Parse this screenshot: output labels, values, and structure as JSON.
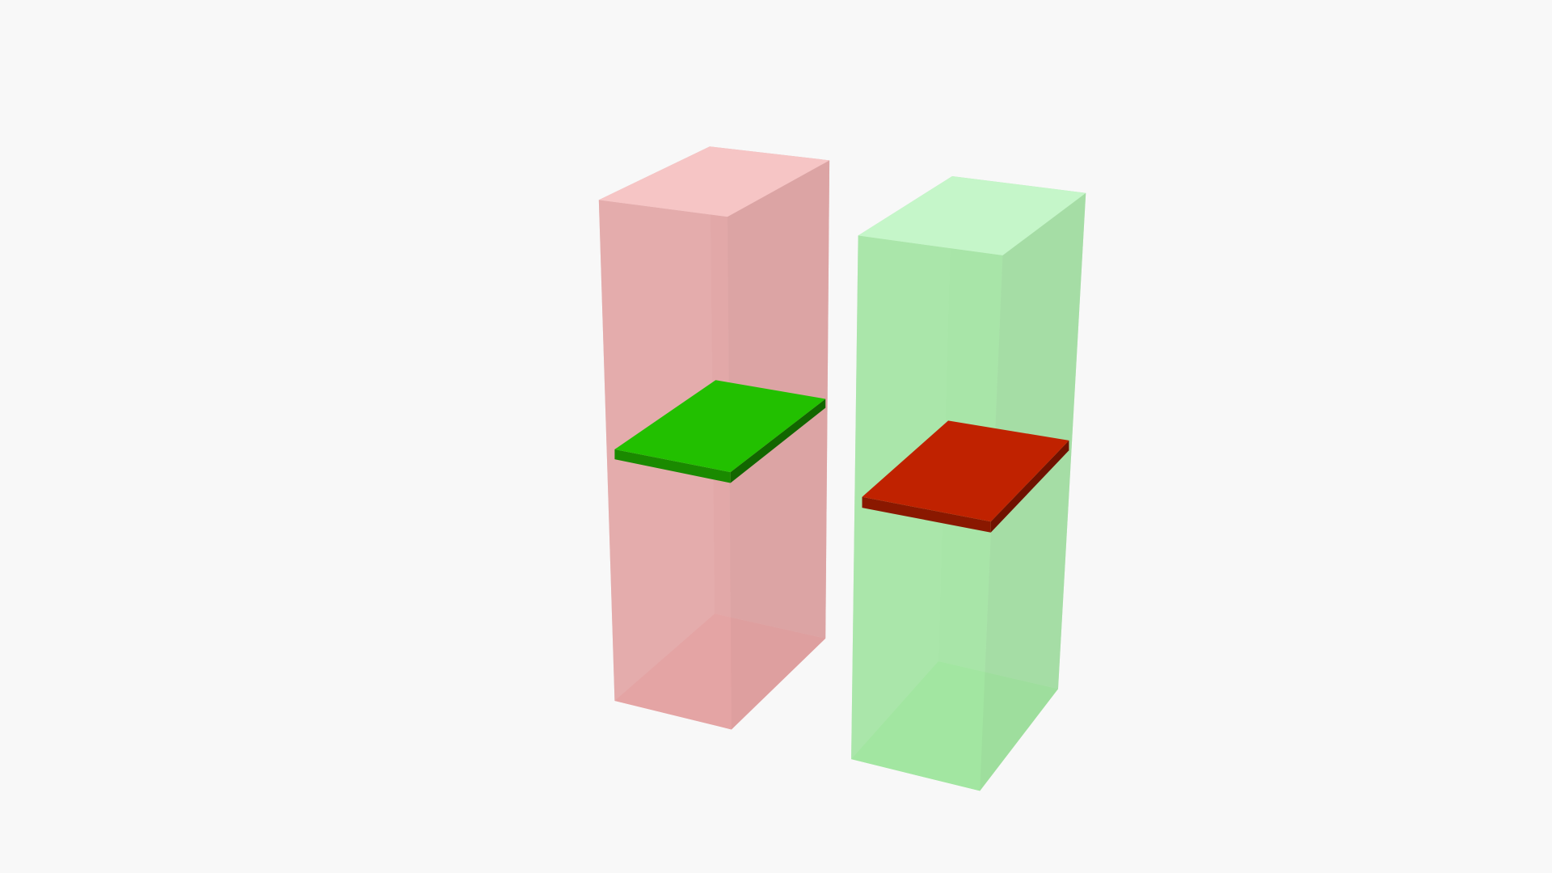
{
  "scene": {
    "background": "#f8f8f8",
    "objects": [
      {
        "name": "left-container",
        "kind": "translucent-box",
        "color": "#e8a0a0"
      },
      {
        "name": "left-plate",
        "kind": "flat-plate",
        "color": "#22c000"
      },
      {
        "name": "right-container",
        "kind": "translucent-box",
        "color": "#a0e8a0"
      },
      {
        "name": "right-plate",
        "kind": "flat-plate",
        "color": "#c02200"
      }
    ]
  }
}
